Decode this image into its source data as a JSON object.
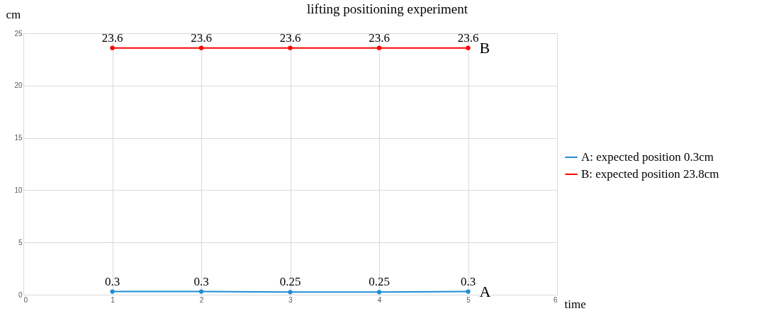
{
  "chart_data": {
    "type": "line",
    "title": "lifting positioning experiment",
    "xlabel": "time",
    "ylabel": "cm",
    "x": [
      1,
      2,
      3,
      4,
      5
    ],
    "series": [
      {
        "name": "A: expected position 0.3cm",
        "color": "#1f8dd6",
        "values": [
          0.3,
          0.3,
          0.25,
          0.25,
          0.3
        ]
      },
      {
        "name": "B: expected position 23.8cm",
        "color": "#ff0000",
        "values": [
          23.6,
          23.6,
          23.6,
          23.6,
          23.6
        ]
      }
    ],
    "annotations": [
      {
        "text": "A",
        "x": 5,
        "y": 0.3
      },
      {
        "text": "B",
        "x": 5,
        "y": 23.6
      }
    ],
    "xlim": [
      0,
      6
    ],
    "xticks": [
      0,
      1,
      2,
      3,
      4,
      5,
      6
    ],
    "ylim": [
      0,
      25
    ],
    "yticks": [
      0,
      5,
      10,
      15,
      20,
      25
    ],
    "grid": true,
    "legend": "right",
    "marker": "circle",
    "line_style": "solid",
    "data_labels": true
  }
}
